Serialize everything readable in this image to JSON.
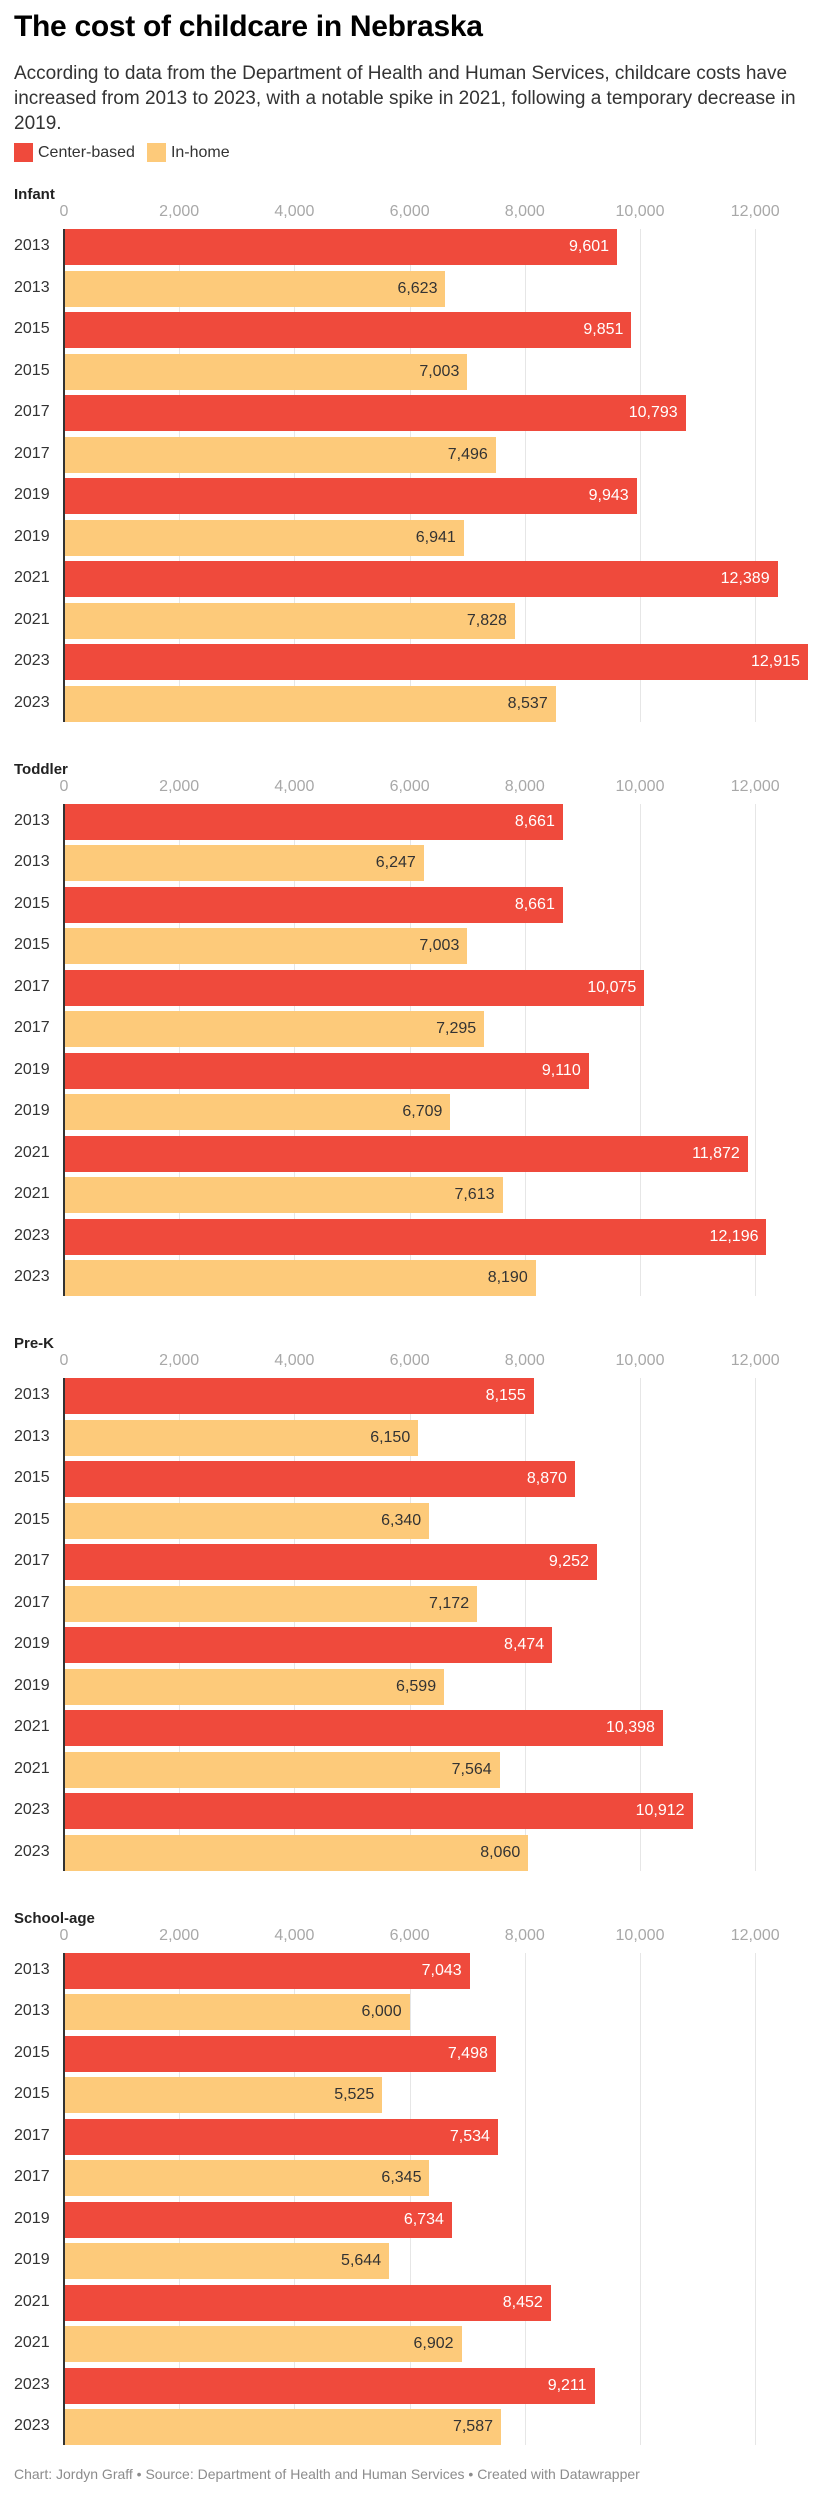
{
  "title": "The cost of childcare in Nebraska",
  "description": "According to data from the Department of Health and Human Services, childcare costs have increased from 2013 to 2023, with a notable spike in 2021, following a temporary decrease in 2019.",
  "legend": [
    {
      "label": "Center-based",
      "color": "#ef4a3c"
    },
    {
      "label": "In-home",
      "color": "#fdca7a"
    }
  ],
  "footer": "Chart: Jordyn Graff • Source: Department of Health and Human Services • Created with Datawrapper",
  "chart_data": {
    "type": "bar",
    "orientation": "horizontal",
    "title": "The cost of childcare in Nebraska",
    "xlim": [
      0,
      13000
    ],
    "xticks": [
      0,
      2000,
      4000,
      6000,
      8000,
      10000,
      12000
    ],
    "xtick_labels": [
      "0",
      "2,000",
      "4,000",
      "6,000",
      "8,000",
      "10,000",
      "12,000"
    ],
    "grid": true,
    "legend_position": "top-left",
    "series_colors": {
      "Center-based": "#ef4a3c",
      "In-home": "#fdca7a"
    },
    "label_colors": {
      "Center-based": "#ffffff",
      "In-home": "#333333"
    },
    "panels": [
      {
        "title": "Infant",
        "rows": [
          {
            "year": "2013",
            "series": "Center-based",
            "value": 9601,
            "label": "9,601"
          },
          {
            "year": "2013",
            "series": "In-home",
            "value": 6623,
            "label": "6,623"
          },
          {
            "year": "2015",
            "series": "Center-based",
            "value": 9851,
            "label": "9,851"
          },
          {
            "year": "2015",
            "series": "In-home",
            "value": 7003,
            "label": "7,003"
          },
          {
            "year": "2017",
            "series": "Center-based",
            "value": 10793,
            "label": "10,793"
          },
          {
            "year": "2017",
            "series": "In-home",
            "value": 7496,
            "label": "7,496"
          },
          {
            "year": "2019",
            "series": "Center-based",
            "value": 9943,
            "label": "9,943"
          },
          {
            "year": "2019",
            "series": "In-home",
            "value": 6941,
            "label": "6,941"
          },
          {
            "year": "2021",
            "series": "Center-based",
            "value": 12389,
            "label": "12,389"
          },
          {
            "year": "2021",
            "series": "In-home",
            "value": 7828,
            "label": "7,828"
          },
          {
            "year": "2023",
            "series": "Center-based",
            "value": 12915,
            "label": "12,915"
          },
          {
            "year": "2023",
            "series": "In-home",
            "value": 8537,
            "label": "8,537"
          }
        ]
      },
      {
        "title": "Toddler",
        "rows": [
          {
            "year": "2013",
            "series": "Center-based",
            "value": 8661,
            "label": "8,661"
          },
          {
            "year": "2013",
            "series": "In-home",
            "value": 6247,
            "label": "6,247"
          },
          {
            "year": "2015",
            "series": "Center-based",
            "value": 8661,
            "label": "8,661"
          },
          {
            "year": "2015",
            "series": "In-home",
            "value": 7003,
            "label": "7,003"
          },
          {
            "year": "2017",
            "series": "Center-based",
            "value": 10075,
            "label": "10,075"
          },
          {
            "year": "2017",
            "series": "In-home",
            "value": 7295,
            "label": "7,295"
          },
          {
            "year": "2019",
            "series": "Center-based",
            "value": 9110,
            "label": "9,110"
          },
          {
            "year": "2019",
            "series": "In-home",
            "value": 6709,
            "label": "6,709"
          },
          {
            "year": "2021",
            "series": "Center-based",
            "value": 11872,
            "label": "11,872"
          },
          {
            "year": "2021",
            "series": "In-home",
            "value": 7613,
            "label": "7,613"
          },
          {
            "year": "2023",
            "series": "Center-based",
            "value": 12196,
            "label": "12,196"
          },
          {
            "year": "2023",
            "series": "In-home",
            "value": 8190,
            "label": "8,190"
          }
        ]
      },
      {
        "title": "Pre-K",
        "rows": [
          {
            "year": "2013",
            "series": "Center-based",
            "value": 8155,
            "label": "8,155"
          },
          {
            "year": "2013",
            "series": "In-home",
            "value": 6150,
            "label": "6,150"
          },
          {
            "year": "2015",
            "series": "Center-based",
            "value": 8870,
            "label": "8,870"
          },
          {
            "year": "2015",
            "series": "In-home",
            "value": 6340,
            "label": "6,340"
          },
          {
            "year": "2017",
            "series": "Center-based",
            "value": 9252,
            "label": "9,252"
          },
          {
            "year": "2017",
            "series": "In-home",
            "value": 7172,
            "label": "7,172"
          },
          {
            "year": "2019",
            "series": "Center-based",
            "value": 8474,
            "label": "8,474"
          },
          {
            "year": "2019",
            "series": "In-home",
            "value": 6599,
            "label": "6,599"
          },
          {
            "year": "2021",
            "series": "Center-based",
            "value": 10398,
            "label": "10,398"
          },
          {
            "year": "2021",
            "series": "In-home",
            "value": 7564,
            "label": "7,564"
          },
          {
            "year": "2023",
            "series": "Center-based",
            "value": 10912,
            "label": "10,912"
          },
          {
            "year": "2023",
            "series": "In-home",
            "value": 8060,
            "label": "8,060"
          }
        ]
      },
      {
        "title": "School-age",
        "rows": [
          {
            "year": "2013",
            "series": "Center-based",
            "value": 7043,
            "label": "7,043"
          },
          {
            "year": "2013",
            "series": "In-home",
            "value": 6000,
            "label": "6,000"
          },
          {
            "year": "2015",
            "series": "Center-based",
            "value": 7498,
            "label": "7,498"
          },
          {
            "year": "2015",
            "series": "In-home",
            "value": 5525,
            "label": "5,525"
          },
          {
            "year": "2017",
            "series": "Center-based",
            "value": 7534,
            "label": "7,534"
          },
          {
            "year": "2017",
            "series": "In-home",
            "value": 6345,
            "label": "6,345"
          },
          {
            "year": "2019",
            "series": "Center-based",
            "value": 6734,
            "label": "6,734"
          },
          {
            "year": "2019",
            "series": "In-home",
            "value": 5644,
            "label": "5,644"
          },
          {
            "year": "2021",
            "series": "Center-based",
            "value": 8452,
            "label": "8,452"
          },
          {
            "year": "2021",
            "series": "In-home",
            "value": 6902,
            "label": "6,902"
          },
          {
            "year": "2023",
            "series": "Center-based",
            "value": 9211,
            "label": "9,211"
          },
          {
            "year": "2023",
            "series": "In-home",
            "value": 7587,
            "label": "7,587"
          }
        ]
      }
    ]
  }
}
